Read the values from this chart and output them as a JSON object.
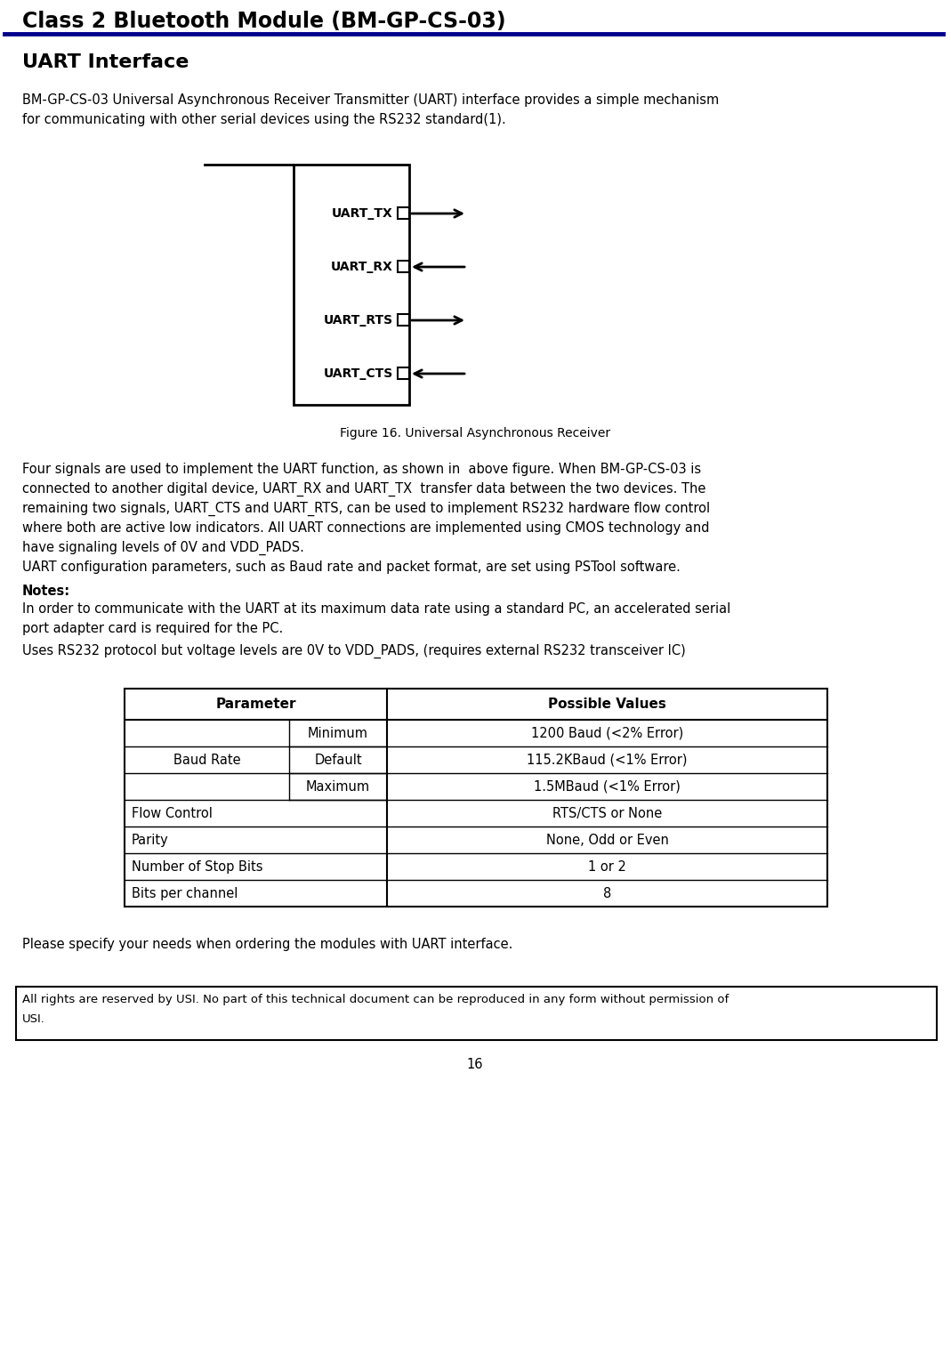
{
  "title": "Class 2 Bluetooth Module (BM-GP-CS-03)",
  "title_color": "#000000",
  "title_underline_color": "#00008B",
  "section_title": "UART Interface",
  "body_text1_lines": [
    "BM-GP-CS-03 Universal Asynchronous Receiver Transmitter (UART) interface provides a simple mechanism",
    "for communicating with other serial devices using the RS232 standard(1)."
  ],
  "figure_caption": "Figure 16. Universal Asynchronous Receiver",
  "uart_signals": [
    "UART_TX",
    "UART_RX",
    "UART_RTS",
    "UART_CTS"
  ],
  "arrow_directions": [
    "right",
    "left",
    "right",
    "left"
  ],
  "body_text2_lines": [
    "Four signals are used to implement the UART function, as shown in  above figure. When BM-GP-CS-03 is",
    "connected to another digital device, UART_RX and UART_TX  transfer data between the two devices. The",
    "remaining two signals, UART_CTS and UART_RTS, can be used to implement RS232 hardware flow control",
    "where both are active low indicators. All UART connections are implemented using CMOS technology and",
    "have signaling levels of 0V and VDD_PADS.",
    "UART configuration parameters, such as Baud rate and packet format, are set using PSTool software."
  ],
  "notes_label": "Notes:",
  "notes_text1_lines": [
    "In order to communicate with the UART at its maximum data rate using a standard PC, an accelerated serial",
    "port adapter card is required for the PC."
  ],
  "notes_text2": "Uses RS232 protocol but voltage levels are 0V to VDD_PADS, (requires external RS232 transceiver IC)",
  "table_headers": [
    "Parameter",
    "Possible Values"
  ],
  "table_rows": [
    [
      "Baud Rate",
      "Minimum",
      "1200 Baud (<2% Error)"
    ],
    [
      "",
      "Default",
      "115.2KBaud (<1% Error)"
    ],
    [
      "",
      "Maximum",
      "1.5MBaud (<1% Error)"
    ],
    [
      "Flow Control",
      "",
      "RTS/CTS or None"
    ],
    [
      "Parity",
      "",
      "None, Odd or Even"
    ],
    [
      "Number of Stop Bits",
      "",
      "1 or 2"
    ],
    [
      "Bits per channel",
      "",
      "8"
    ]
  ],
  "footer_note": "Please specify your needs when ordering the modules with UART interface.",
  "copyright_text_lines": [
    "All rights are reserved by USI. No part of this technical document can be reproduced in any form without permission of",
    "USI."
  ],
  "page_number": "16",
  "bg_color": "#ffffff",
  "text_color": "#000000",
  "border_color": "#000000"
}
